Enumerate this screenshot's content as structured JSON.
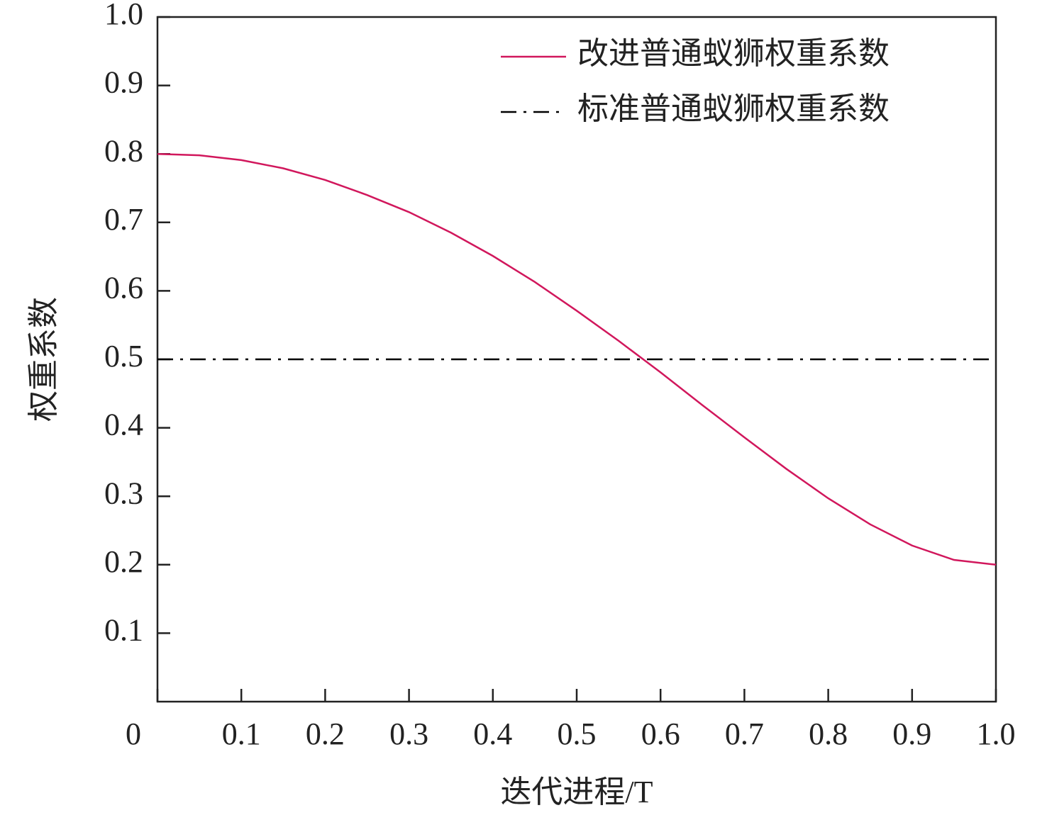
{
  "chart_data": {
    "type": "line",
    "xlabel": "迭代进程/T",
    "ylabel": "权重系数",
    "series": [
      {
        "name": "改进普通蚁狮权重系数",
        "color": "#d1175c",
        "style": "solid",
        "x": [
          0,
          0.05,
          0.1,
          0.15,
          0.2,
          0.25,
          0.3,
          0.35,
          0.4,
          0.45,
          0.5,
          0.55,
          0.6,
          0.65,
          0.7,
          0.75,
          0.8,
          0.85,
          0.9,
          0.95,
          1
        ],
        "values": [
          0.8,
          0.798,
          0.791,
          0.779,
          0.762,
          0.74,
          0.715,
          0.685,
          0.651,
          0.613,
          0.571,
          0.527,
          0.481,
          0.433,
          0.386,
          0.34,
          0.297,
          0.259,
          0.228,
          0.207,
          0.2
        ]
      },
      {
        "name": "标准普通蚁狮权重系数",
        "color": "#000000",
        "style": "dashdot",
        "x": [
          0,
          1
        ],
        "values": [
          0.5,
          0.5
        ]
      }
    ],
    "xlim": [
      0,
      1
    ],
    "ylim": [
      0,
      1
    ],
    "xticks": [
      0,
      0.1,
      0.2,
      0.3,
      0.4,
      0.5,
      0.6,
      0.7,
      0.8,
      0.9,
      {
        "value": 1,
        "label": "1.0"
      }
    ],
    "yticks": [
      0.1,
      0.2,
      0.3,
      0.4,
      0.5,
      0.6,
      0.7,
      0.8,
      0.9,
      {
        "value": 1,
        "label": "1.0"
      }
    ],
    "legend": "upper right",
    "grid": false
  }
}
